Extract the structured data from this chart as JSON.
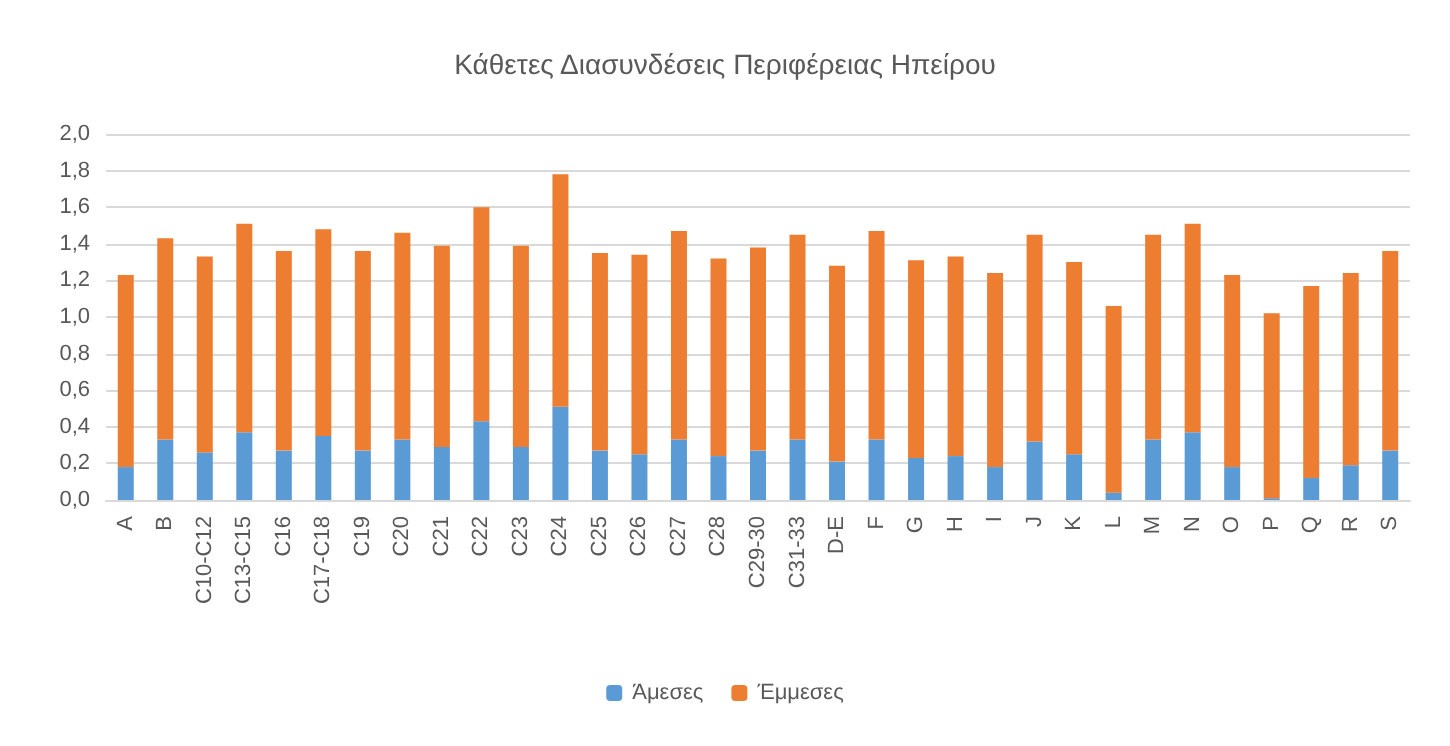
{
  "chart_data": {
    "type": "bar",
    "title": "Κάθετες Διασυνδέσεις Περιφέρειας Ηπείρου",
    "stacked": true,
    "legend": "bottom",
    "grid": "y",
    "categories": [
      "A",
      "B",
      "C10-C12",
      "C13-C15",
      "C16",
      "C17-C18",
      "C19",
      "C20",
      "C21",
      "C22",
      "C23",
      "C24",
      "C25",
      "C26",
      "C27",
      "C28",
      "C29-30",
      "C31-33",
      "D-E",
      "F",
      "G",
      "H",
      "I",
      "J",
      "K",
      "L",
      "M",
      "N",
      "O",
      "P",
      "Q",
      "R",
      "S"
    ],
    "series": [
      {
        "name": "Άμεσες",
        "color": "#5b9bd5",
        "values": [
          0.18,
          0.33,
          0.26,
          0.37,
          0.27,
          0.35,
          0.27,
          0.33,
          0.29,
          0.43,
          0.29,
          0.51,
          0.27,
          0.25,
          0.33,
          0.24,
          0.27,
          0.33,
          0.21,
          0.33,
          0.23,
          0.24,
          0.18,
          0.32,
          0.25,
          0.04,
          0.33,
          0.37,
          0.18,
          0.01,
          0.12,
          0.19,
          0.27
        ]
      },
      {
        "name": "Έμμεσες",
        "color": "#ed7d31",
        "values": [
          1.05,
          1.1,
          1.07,
          1.14,
          1.09,
          1.13,
          1.09,
          1.13,
          1.1,
          1.17,
          1.1,
          1.27,
          1.08,
          1.09,
          1.14,
          1.08,
          1.11,
          1.12,
          1.07,
          1.14,
          1.08,
          1.09,
          1.06,
          1.13,
          1.05,
          1.02,
          1.12,
          1.14,
          1.05,
          1.01,
          1.05,
          1.05,
          1.09
        ]
      }
    ],
    "ylim": [
      0,
      2
    ],
    "yticks": [
      {
        "value": 0,
        "label": "0,0"
      },
      {
        "value": 0.2,
        "label": "0,2"
      },
      {
        "value": 0.4,
        "label": "0,4"
      },
      {
        "value": 0.6,
        "label": "0,6"
      },
      {
        "value": 0.8,
        "label": "0,8"
      },
      {
        "value": 1,
        "label": "1,0"
      },
      {
        "value": 1.2,
        "label": "1,2"
      },
      {
        "value": 1.4,
        "label": "1,4"
      },
      {
        "value": 1.6,
        "label": "1,6"
      },
      {
        "value": 1.8,
        "label": "1,8"
      },
      {
        "value": 2,
        "label": "2,0"
      }
    ]
  }
}
